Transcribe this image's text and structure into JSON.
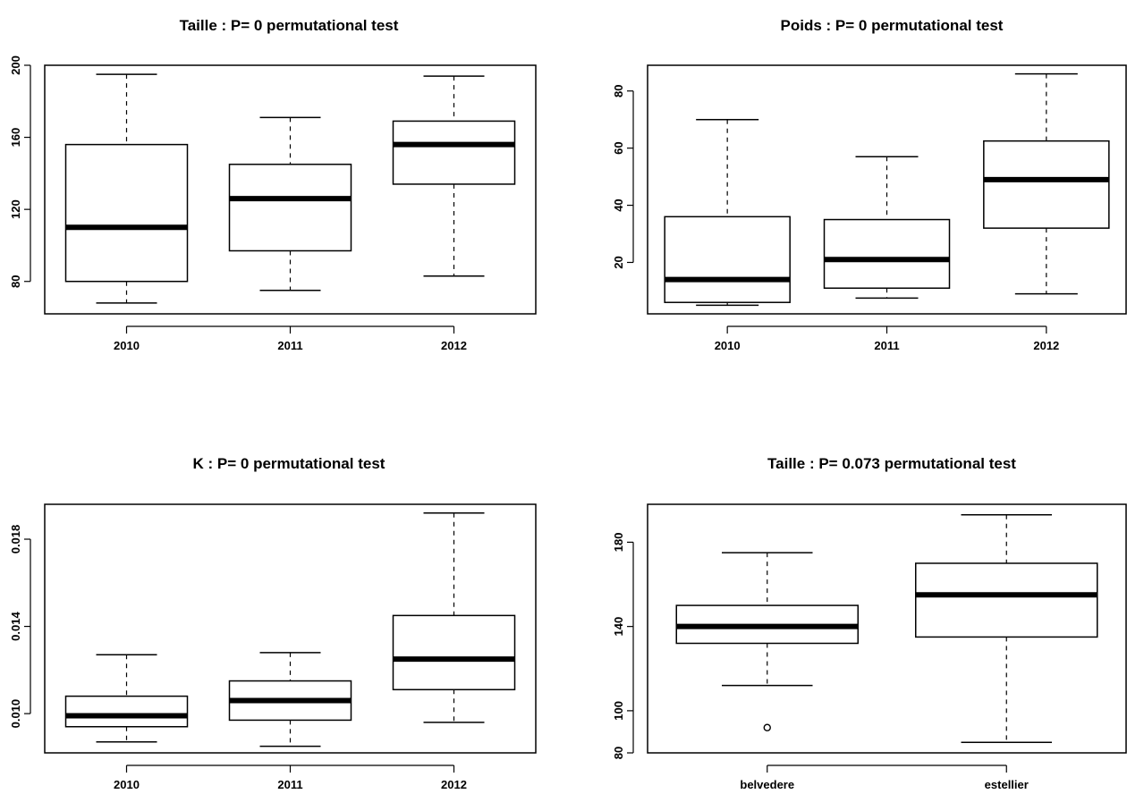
{
  "chart_data": [
    {
      "type": "box",
      "title": "Taille : P= 0  permutational test",
      "categories": [
        "2010",
        "2011",
        "2012"
      ],
      "ylim": [
        62,
        200
      ],
      "yticks": [
        80,
        120,
        160,
        200
      ],
      "ytick_labels": [
        "80",
        "120",
        "160",
        "200"
      ],
      "boxes": [
        {
          "category": "2010",
          "min": 68,
          "q1": 80,
          "median": 110,
          "q3": 156,
          "max": 195,
          "outliers": []
        },
        {
          "category": "2011",
          "min": 75,
          "q1": 97,
          "median": 126,
          "q3": 145,
          "max": 171,
          "outliers": []
        },
        {
          "category": "2012",
          "min": 83,
          "q1": 134,
          "median": 156,
          "q3": 169,
          "max": 194,
          "outliers": []
        }
      ]
    },
    {
      "type": "box",
      "title": "Poids : P= 0  permutational test",
      "categories": [
        "2010",
        "2011",
        "2012"
      ],
      "ylim": [
        2,
        89
      ],
      "yticks": [
        20,
        40,
        60,
        80
      ],
      "ytick_labels": [
        "20",
        "40",
        "60",
        "80"
      ],
      "boxes": [
        {
          "category": "2010",
          "min": 5,
          "q1": 6,
          "median": 14,
          "q3": 36,
          "max": 70,
          "outliers": []
        },
        {
          "category": "2011",
          "min": 7.5,
          "q1": 11,
          "median": 21,
          "q3": 35,
          "max": 57,
          "outliers": []
        },
        {
          "category": "2012",
          "min": 9,
          "q1": 32,
          "median": 49,
          "q3": 62.5,
          "max": 86,
          "outliers": []
        }
      ]
    },
    {
      "type": "box",
      "title": "K : P= 0  permutational test",
      "categories": [
        "2010",
        "2011",
        "2012"
      ],
      "ylim": [
        0.0082,
        0.0196
      ],
      "yticks": [
        0.01,
        0.014,
        0.018
      ],
      "ytick_labels": [
        "0.010",
        "0.014",
        "0.018"
      ],
      "boxes": [
        {
          "category": "2010",
          "min": 0.0087,
          "q1": 0.0094,
          "median": 0.0099,
          "q3": 0.0108,
          "max": 0.0127,
          "outliers": []
        },
        {
          "category": "2011",
          "min": 0.0085,
          "q1": 0.0097,
          "median": 0.0106,
          "q3": 0.0115,
          "max": 0.0128,
          "outliers": []
        },
        {
          "category": "2012",
          "min": 0.0096,
          "q1": 0.0111,
          "median": 0.0125,
          "q3": 0.0145,
          "max": 0.0192,
          "outliers": []
        }
      ]
    },
    {
      "type": "box",
      "title": "Taille : P= 0.073  permutational test",
      "categories": [
        "belvedere",
        "estellier"
      ],
      "ylim": [
        80,
        198
      ],
      "yticks": [
        80,
        100,
        140,
        180
      ],
      "ytick_labels": [
        "80",
        "100",
        "140",
        "180"
      ],
      "boxes": [
        {
          "category": "belvedere",
          "min": 112,
          "q1": 132,
          "median": 140,
          "q3": 150,
          "max": 175,
          "outliers": [
            92
          ]
        },
        {
          "category": "estellier",
          "min": 85,
          "q1": 135,
          "median": 155,
          "q3": 170,
          "max": 193,
          "outliers": []
        }
      ]
    }
  ]
}
